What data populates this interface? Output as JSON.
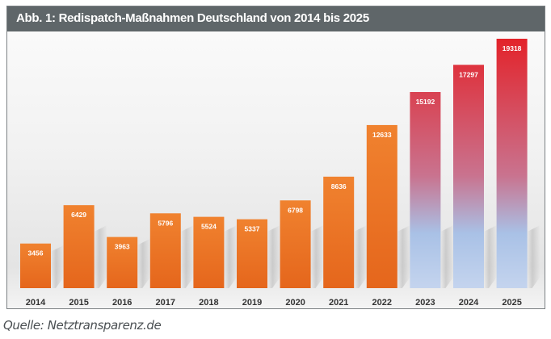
{
  "header": {
    "title": "Abb. 1: Redispatch-Maßnahmen Deutschland von 2014 bis 2025"
  },
  "source": "Quelle: Netztransparenz.de",
  "colors": {
    "header_bg": "#5f6669",
    "historical_bar_top": "#f0822f",
    "historical_bar_bottom": "#e5661c",
    "projection_bar_top": "#e3232a",
    "projection_bar_mid": "#c9738f",
    "projection_bar_bottom": "#a9c1e6",
    "bar_label": "#ffffff",
    "tick_label": "#333333"
  },
  "chart_data": {
    "type": "bar",
    "title": "Abb. 1: Redispatch-Maßnahmen Deutschland von 2014 bis 2025",
    "xlabel": "",
    "ylabel": "",
    "categories": [
      "2014",
      "2015",
      "2016",
      "2017",
      "2018",
      "2019",
      "2020",
      "2021",
      "2022",
      "2023",
      "2024",
      "2025"
    ],
    "values": [
      3456,
      6429,
      3963,
      5796,
      5524,
      5337,
      6798,
      8636,
      12633,
      15192,
      17297,
      19318
    ],
    "value_labels": [
      "3456",
      "6429",
      "3963",
      "5796",
      "5524",
      "5337",
      "6798",
      "8636",
      "12633",
      "15192",
      "17297",
      "19318"
    ],
    "series_style": [
      "historical",
      "historical",
      "historical",
      "historical",
      "historical",
      "historical",
      "historical",
      "historical",
      "historical",
      "projection",
      "projection",
      "projection"
    ],
    "ylim": [
      0,
      19318
    ],
    "grid": false,
    "legend": "none",
    "data_labels": "inside-top"
  }
}
